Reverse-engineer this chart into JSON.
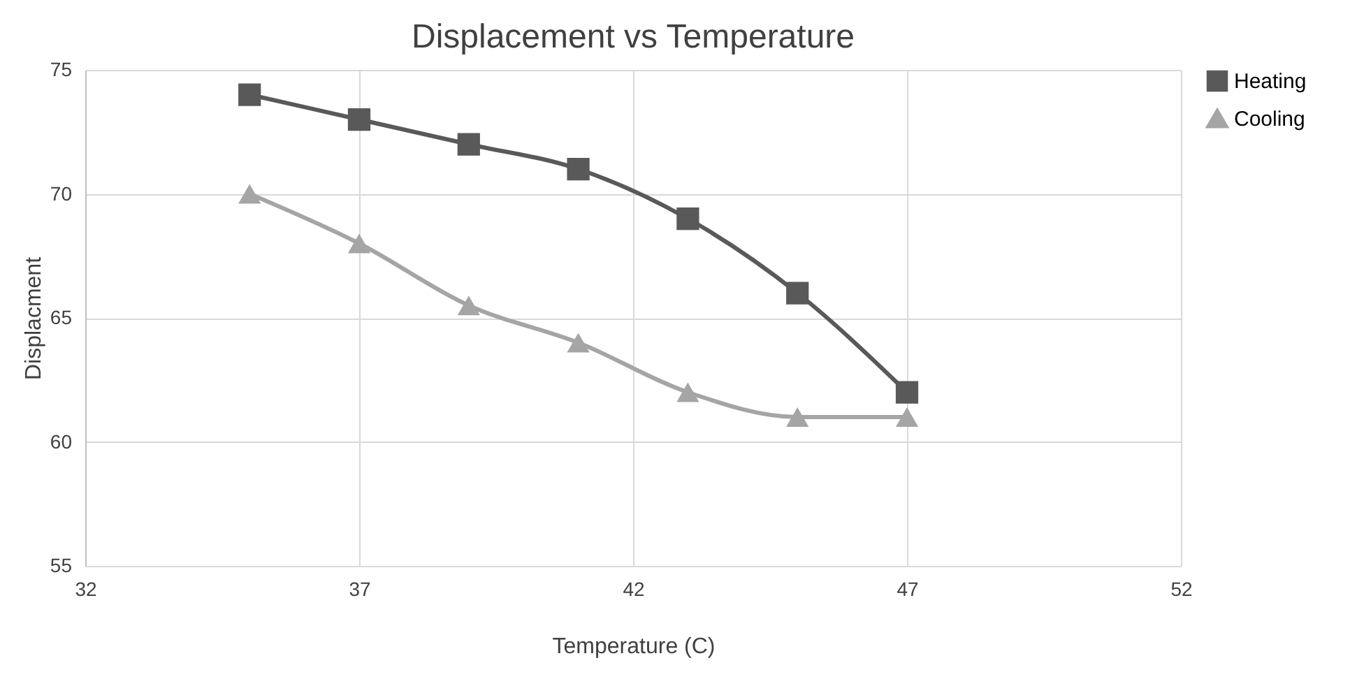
{
  "chart_data": {
    "type": "line",
    "title": "Displacement vs Temperature",
    "xlabel": "Temperature (C)",
    "ylabel": "Displacment",
    "x": [
      35,
      37,
      39,
      41,
      43,
      45,
      47
    ],
    "series": [
      {
        "name": "Heating",
        "color": "#595959",
        "marker": "square",
        "values": [
          74,
          73,
          72,
          71,
          69,
          66,
          62
        ]
      },
      {
        "name": "Cooling",
        "color": "#a5a5a5",
        "marker": "triangle",
        "values": [
          70,
          68,
          65.5,
          64,
          62,
          61,
          61
        ]
      }
    ],
    "xlim": [
      32,
      52
    ],
    "xticks": [
      32,
      37,
      42,
      47,
      52
    ],
    "ylim": [
      55,
      75
    ],
    "yticks": [
      55,
      60,
      65,
      70,
      75
    ],
    "grid": true,
    "legend": "right",
    "line_style": "solid"
  }
}
